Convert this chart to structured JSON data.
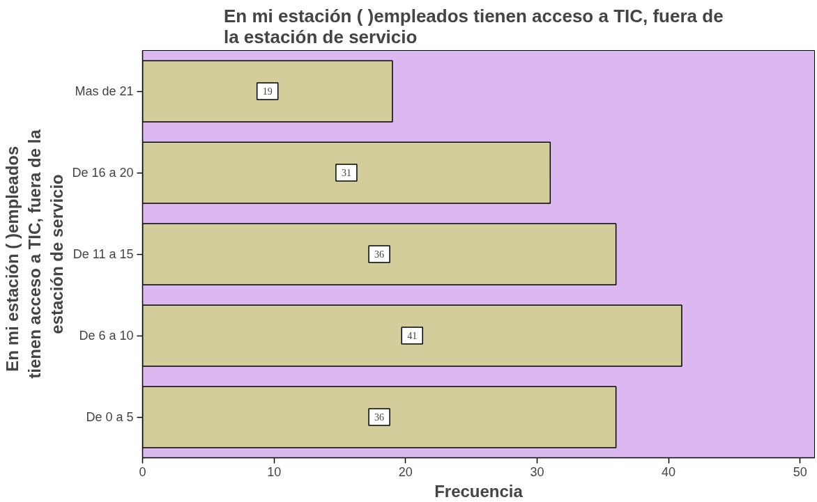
{
  "chart_data": {
    "type": "bar",
    "orientation": "horizontal",
    "title": "En mi estación (   )empleados tienen acceso a TIC, fuera de la estación de servicio",
    "xlabel": "Frecuencia",
    "ylabel": "En mi estación (   )empleados tienen acceso a TIC, fuera de la estación de servicio",
    "categories": [
      "Mas de 21",
      "De 16 a 20",
      "De 11 a 15",
      "De 6 a 10",
      "De 0 a 5"
    ],
    "values": [
      19,
      31,
      36,
      41,
      36
    ],
    "color": "#d3cd9b",
    "data_labels": true,
    "xlim": [
      0,
      51.1
    ],
    "xticks": [
      0,
      10,
      20,
      30,
      40,
      50
    ],
    "grid": false
  }
}
